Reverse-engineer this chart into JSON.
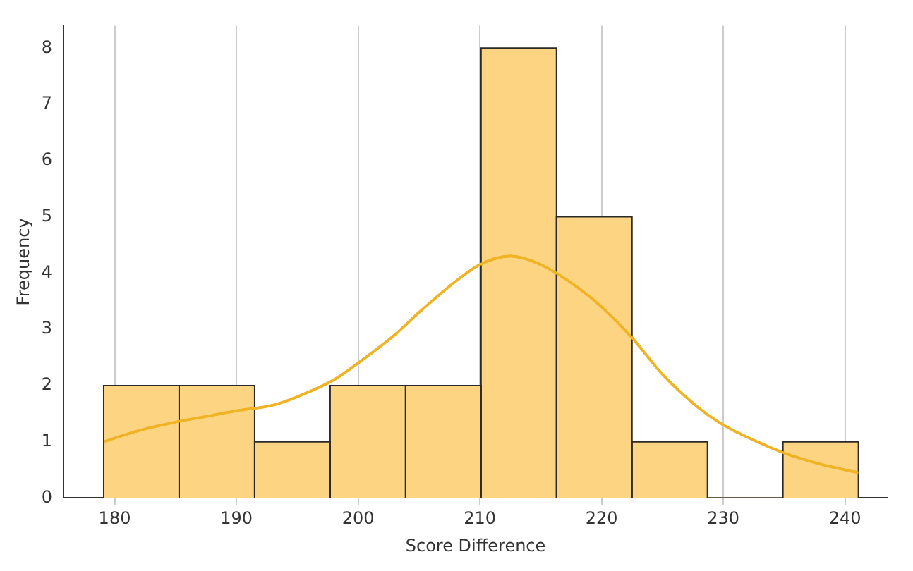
{
  "chart_data": {
    "type": "histogram",
    "xlabel": "Score Difference",
    "ylabel": "Frequency",
    "bins": [
      179.1,
      185.3,
      191.5,
      197.7,
      203.9,
      210.1,
      216.3,
      222.5,
      228.7,
      234.9,
      241.1
    ],
    "values": [
      2,
      2,
      1,
      2,
      2,
      8,
      5,
      1,
      0,
      1
    ],
    "color": "#fdd582",
    "series": [
      {
        "type": "line",
        "color": "#f0b323",
        "x": [
          179.1,
          182,
          185,
          188,
          190,
          193,
          195,
          198,
          200,
          203,
          205,
          208,
          210,
          212.5,
          215,
          218,
          220,
          222.5,
          225,
          228,
          230,
          233,
          235,
          238,
          241.1
        ],
        "values": [
          1.0,
          1.2,
          1.35,
          1.47,
          1.55,
          1.65,
          1.8,
          2.1,
          2.4,
          2.9,
          3.3,
          3.85,
          4.15,
          4.3,
          4.15,
          3.75,
          3.4,
          2.85,
          2.2,
          1.6,
          1.3,
          0.98,
          0.8,
          0.6,
          0.45
        ]
      }
    ],
    "xlim": [
      175.8,
      243.5
    ],
    "xticks": [
      180,
      190,
      200,
      210,
      220,
      230,
      240
    ],
    "ylim": [
      0,
      8.4
    ],
    "yticks": [
      0,
      1,
      2,
      3,
      4,
      5,
      6,
      7,
      8
    ],
    "grid": "x",
    "line_style": "solid",
    "marker": "none",
    "legend": false
  }
}
